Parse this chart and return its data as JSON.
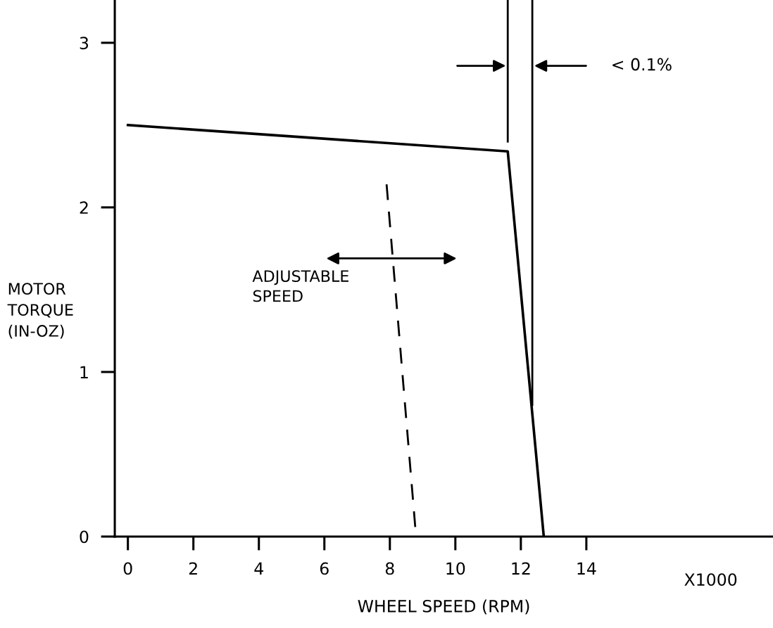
{
  "chart_data": {
    "type": "line",
    "xlabel": "WHEEL SPEED (RPM)",
    "ylabel": "MOTOR\nTORQUE\n(IN-OZ)",
    "xlim": [
      -0.4,
      19.7
    ],
    "ylim": [
      0,
      3.26
    ],
    "xticks": [
      0,
      2,
      4,
      6,
      8,
      10,
      12,
      14
    ],
    "yticks": [
      0,
      1,
      2,
      3
    ],
    "series": [
      {
        "color": "#000000",
        "x": [
          0,
          11.6,
          12.7
        ],
        "values": [
          2.5,
          2.34,
          0
        ]
      },
      {
        "color": "#000000",
        "x": [
          7.9,
          8.8
        ],
        "values": [
          2.14,
          0
        ],
        "line_style": "dashed"
      },
      {
        "color": "#000000",
        "x": [
          11.6,
          11.6
        ],
        "values": [
          3.26,
          2.4
        ]
      },
      {
        "color": "#000000",
        "x": [
          12.35,
          12.35
        ],
        "values": [
          3.26,
          0.8
        ]
      }
    ],
    "annotations": [
      "ADJUSTABLE\nSPEED",
      "< 0.1%",
      "X1000"
    ],
    "grid": false,
    "legend": false,
    "line_style": "solid",
    "marker": "none"
  }
}
